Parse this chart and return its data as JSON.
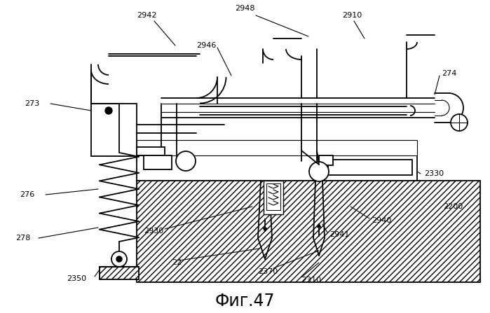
{
  "title": "Фиг.47",
  "bg_color": "#ffffff",
  "lw_main": 1.3,
  "lw_thin": 0.8,
  "black": "#000000"
}
